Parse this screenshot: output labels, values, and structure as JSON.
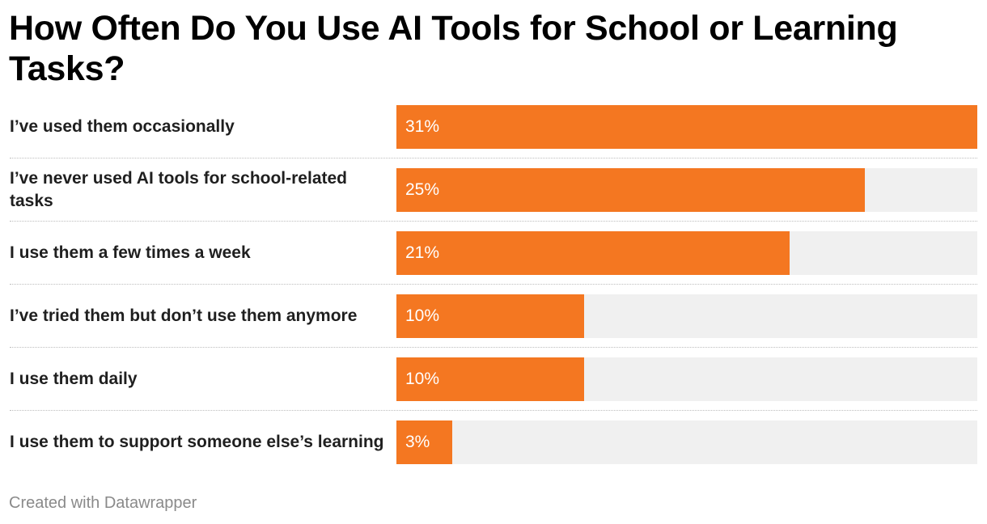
{
  "chart_data": {
    "type": "bar",
    "orientation": "horizontal",
    "title": "How Often Do You Use AI Tools for School or Learning Tasks?",
    "categories": [
      "I’ve used them occasionally",
      "I’ve never used AI tools for school-related tasks",
      "I use them a few times a week",
      "I’ve tried them but don’t use them anymore",
      "I use them daily",
      "I use them to support someone else’s learning"
    ],
    "values": [
      31,
      25,
      21,
      10,
      10,
      3
    ],
    "value_labels": [
      "31%",
      "25%",
      "21%",
      "10%",
      "10%",
      "3%"
    ],
    "unit": "%",
    "xlim": [
      0,
      31
    ],
    "grid": false,
    "legend": "none",
    "bar_color": "#f47721",
    "track_color": "#f0f0f0"
  },
  "footer": {
    "credit": "Created with Datawrapper"
  }
}
